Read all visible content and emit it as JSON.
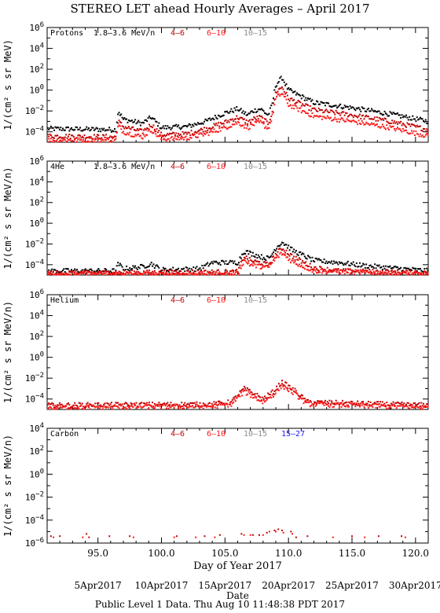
{
  "title": "STEREO LET ahead Hourly Averages – April 2017",
  "footer": "Public Level 1 Data. Thu Aug 10 11:48:38 PDT 2017",
  "colors": {
    "black": "#000000",
    "darkred": "#c00000",
    "red": "#ff1a1a",
    "gray": "#8c8c8c",
    "blue": "#1a1aff"
  },
  "chart_data": {
    "type": "scatter",
    "xlabel": "Day of Year 2017",
    "xlim": [
      91,
      121
    ],
    "x_ticks": [
      95,
      100,
      105,
      110,
      115,
      120
    ],
    "x_tick_labels": [
      "95.0",
      "100.0",
      "105.0",
      "110.0",
      "115.0",
      "120.0"
    ],
    "date_ticks": [
      {
        "doy": 95,
        "label": "5Apr2017"
      },
      {
        "doy": 100,
        "label": "10Apr2017"
      },
      {
        "doy": 105,
        "label": "15Apr2017"
      },
      {
        "doy": 110,
        "label": "20Apr2017"
      },
      {
        "doy": 115,
        "label": "25Apr2017"
      },
      {
        "doy": 120,
        "label": "30Apr2017"
      }
    ],
    "date_axis_label": "Date",
    "y_scale": "log",
    "panels": [
      {
        "name": "Protons",
        "ylabel": "1/(cm² s sr MeV)",
        "ylim_exp": [
          -5,
          6
        ],
        "y_tick_exps": [
          6,
          4,
          2,
          0,
          -2,
          -4
        ],
        "legend": [
          {
            "label": "1.8–3.6 MeV/n",
            "color": "black"
          },
          {
            "label": "4–6",
            "color": "darkred"
          },
          {
            "label": "6–10",
            "color": "red"
          },
          {
            "label": "10–15",
            "color": "gray"
          }
        ],
        "series": [
          {
            "name": "1.8–3.6 MeV/n",
            "color": "black",
            "points": [
              [
                91,
                -3.7
              ],
              [
                96.4,
                -3.8
              ],
              [
                96.6,
                -2
              ],
              [
                97,
                -2.8
              ],
              [
                98.5,
                -3.2
              ],
              [
                99.2,
                -2.6
              ],
              [
                100,
                -3.6
              ],
              [
                102,
                -3.5
              ],
              [
                103.5,
                -3
              ],
              [
                105,
                -2.2
              ],
              [
                106,
                -1.8
              ],
              [
                106.8,
                -2.4
              ],
              [
                107.2,
                -2.0
              ],
              [
                107.8,
                -1.8
              ],
              [
                108.4,
                -2.4
              ],
              [
                108.7,
                -1.5
              ],
              [
                109,
                0.5
              ],
              [
                109.5,
                1.2
              ],
              [
                110,
                0
              ],
              [
                112,
                -1.2
              ],
              [
                115,
                -1.7
              ],
              [
                118,
                -2.3
              ],
              [
                121,
                -3.0
              ]
            ]
          },
          {
            "name": "4–6",
            "color": "darkred",
            "points": [
              [
                91,
                -4.4
              ],
              [
                96.4,
                -4.5
              ],
              [
                96.6,
                -3.0
              ],
              [
                97,
                -3.5
              ],
              [
                98.5,
                -4.0
              ],
              [
                99.2,
                -3.3
              ],
              [
                100,
                -4.3
              ],
              [
                102,
                -4.2
              ],
              [
                103.5,
                -3.7
              ],
              [
                105,
                -3.1
              ],
              [
                106,
                -2.6
              ],
              [
                106.8,
                -3.1
              ],
              [
                107.2,
                -2.8
              ],
              [
                107.8,
                -2.6
              ],
              [
                108.4,
                -3.2
              ],
              [
                108.7,
                -2.2
              ],
              [
                109,
                -0.2
              ],
              [
                109.5,
                0.3
              ],
              [
                110,
                -0.8
              ],
              [
                112,
                -1.9
              ],
              [
                115,
                -2.4
              ],
              [
                118,
                -3.0
              ],
              [
                121,
                -3.8
              ]
            ]
          },
          {
            "name": "6–10",
            "color": "red",
            "points": [
              [
                91,
                -4.8
              ],
              [
                96.4,
                -4.8
              ],
              [
                96.6,
                -3.4
              ],
              [
                97,
                -4.0
              ],
              [
                98.5,
                -4.5
              ],
              [
                99.2,
                -3.8
              ],
              [
                100,
                -4.7
              ],
              [
                102,
                -4.6
              ],
              [
                103.5,
                -4.2
              ],
              [
                105,
                -3.6
              ],
              [
                106,
                -3.1
              ],
              [
                106.8,
                -3.6
              ],
              [
                107.2,
                -3.3
              ],
              [
                107.8,
                -3.1
              ],
              [
                108.4,
                -3.7
              ],
              [
                108.7,
                -2.7
              ],
              [
                109,
                -0.8
              ],
              [
                109.5,
                -0.3
              ],
              [
                110,
                -1.4
              ],
              [
                112,
                -2.5
              ],
              [
                115,
                -3.0
              ],
              [
                118,
                -3.6
              ],
              [
                121,
                -4.4
              ]
            ]
          }
        ]
      },
      {
        "name": "4He",
        "ylabel": "1/(cm² s sr MeV/n)",
        "ylim_exp": [
          -5,
          6
        ],
        "y_tick_exps": [
          6,
          4,
          2,
          0,
          -2,
          -4
        ],
        "legend": [
          {
            "label": "1.8–3.6 MeV/n",
            "color": "black"
          },
          {
            "label": "4–6",
            "color": "darkred"
          },
          {
            "label": "6–10",
            "color": "red"
          },
          {
            "label": "10–15",
            "color": "gray"
          }
        ],
        "series": [
          {
            "name": "1.8–3.6 MeV/n",
            "color": "black",
            "points": [
              [
                91,
                -4.6
              ],
              [
                96.4,
                -4.6
              ],
              [
                96.6,
                -3.9
              ],
              [
                97,
                -4.4
              ],
              [
                98.5,
                -4.2
              ],
              [
                99.2,
                -3.9
              ],
              [
                100,
                -4.5
              ],
              [
                103,
                -4.4
              ],
              [
                104,
                -3.8
              ],
              [
                106,
                -3.8
              ],
              [
                106.5,
                -2.7
              ],
              [
                107,
                -2.9
              ],
              [
                108,
                -3.3
              ],
              [
                108.5,
                -3.4
              ],
              [
                109,
                -2.4
              ],
              [
                109.5,
                -1.8
              ],
              [
                110.3,
                -2.6
              ],
              [
                112,
                -3.6
              ],
              [
                114,
                -3.8
              ],
              [
                116,
                -4.1
              ],
              [
                121,
                -4.6
              ]
            ]
          },
          {
            "name": "4–6",
            "color": "darkred",
            "points": [
              [
                91,
                -4.8
              ],
              [
                106,
                -4.7
              ],
              [
                106.5,
                -3.2
              ],
              [
                107,
                -3.6
              ],
              [
                108.4,
                -4.0
              ],
              [
                109,
                -3.0
              ],
              [
                109.5,
                -2.4
              ],
              [
                110.3,
                -3.2
              ],
              [
                112,
                -4.3
              ],
              [
                114,
                -4.6
              ],
              [
                121,
                -4.8
              ]
            ]
          },
          {
            "name": "6–10",
            "color": "red",
            "points": [
              [
                91,
                -4.9
              ],
              [
                106,
                -4.9
              ],
              [
                106.5,
                -3.6
              ],
              [
                107,
                -4.0
              ],
              [
                108.4,
                -4.3
              ],
              [
                109,
                -3.4
              ],
              [
                109.5,
                -2.9
              ],
              [
                110.3,
                -3.7
              ],
              [
                112,
                -4.6
              ],
              [
                121,
                -4.9
              ]
            ]
          }
        ]
      },
      {
        "name": "Helium",
        "ylabel": "1/(cm² s sr MeV/n)",
        "ylim_exp": [
          -5,
          6
        ],
        "y_tick_exps": [
          6,
          4,
          2,
          0,
          -2,
          -4
        ],
        "legend": [
          {
            "label": "4–6",
            "color": "darkred"
          },
          {
            "label": "6–10",
            "color": "red"
          },
          {
            "label": "10–15",
            "color": "gray"
          }
        ],
        "series": [
          {
            "name": "4–6",
            "color": "darkred",
            "points": [
              [
                91,
                -4.6
              ],
              [
                104,
                -4.5
              ],
              [
                105.5,
                -4.3
              ],
              [
                106.5,
                -3.0
              ],
              [
                107,
                -3.3
              ],
              [
                108,
                -4.0
              ],
              [
                108.8,
                -3.3
              ],
              [
                109.5,
                -2.4
              ],
              [
                110.5,
                -3.2
              ],
              [
                111.5,
                -4.3
              ],
              [
                121,
                -4.6
              ]
            ]
          },
          {
            "name": "6–10",
            "color": "red",
            "points": [
              [
                91,
                -4.8
              ],
              [
                104,
                -4.7
              ],
              [
                105.5,
                -4.5
              ],
              [
                106.5,
                -3.3
              ],
              [
                107,
                -3.6
              ],
              [
                108,
                -4.3
              ],
              [
                108.8,
                -3.6
              ],
              [
                109.5,
                -2.7
              ],
              [
                110.5,
                -3.5
              ],
              [
                111.5,
                -4.5
              ],
              [
                121,
                -4.8
              ]
            ]
          }
        ]
      },
      {
        "name": "Carbon",
        "ylabel": "1/(cm² s sr MeV/n)",
        "ylim_exp": [
          -6,
          4
        ],
        "y_tick_exps": [
          4,
          2,
          0,
          -2,
          -4,
          -6
        ],
        "legend": [
          {
            "label": "4–6",
            "color": "darkred"
          },
          {
            "label": "6–10",
            "color": "red"
          },
          {
            "label": "10–15",
            "color": "gray"
          },
          {
            "label": "15–27",
            "color": "blue"
          }
        ],
        "series": [
          {
            "name": "4–6",
            "color": "darkred",
            "points": [
              [
                91.3,
                -5.4
              ],
              [
                92,
                -5.4
              ],
              [
                94.1,
                -5.2
              ],
              [
                94.3,
                -5.5
              ],
              [
                95.9,
                -5.4
              ],
              [
                97.5,
                -5.4
              ],
              [
                101.2,
                -5.4
              ],
              [
                103.4,
                -5.4
              ],
              [
                104.6,
                -5.3
              ],
              [
                106.3,
                -5.2
              ],
              [
                107.2,
                -5.3
              ],
              [
                107.7,
                -5.3
              ],
              [
                108.3,
                -5.1
              ],
              [
                108.9,
                -4.9
              ],
              [
                109.2,
                -4.8
              ],
              [
                109.5,
                -4.9
              ],
              [
                110.2,
                -5.0
              ],
              [
                110.6,
                -5.5
              ],
              [
                111.5,
                -5.4
              ],
              [
                115,
                -5.4
              ],
              [
                117.1,
                -5.4
              ],
              [
                118.9,
                -5.4
              ]
            ]
          },
          {
            "name": "6–10",
            "color": "red",
            "points": [
              [
                91.5,
                -5.5
              ],
              [
                93.8,
                -5.5
              ],
              [
                97.8,
                -5.5
              ],
              [
                101,
                -5.5
              ],
              [
                102.7,
                -5.5
              ],
              [
                104.2,
                -5.5
              ],
              [
                106.5,
                -5.3
              ],
              [
                107,
                -5.3
              ],
              [
                108,
                -5.3
              ],
              [
                108.5,
                -5.0
              ],
              [
                109,
                -5.0
              ],
              [
                109.6,
                -5.1
              ],
              [
                110.3,
                -5.2
              ],
              [
                113.5,
                -5.5
              ],
              [
                116,
                -5.5
              ],
              [
                119.2,
                -5.5
              ]
            ]
          }
        ]
      }
    ]
  }
}
